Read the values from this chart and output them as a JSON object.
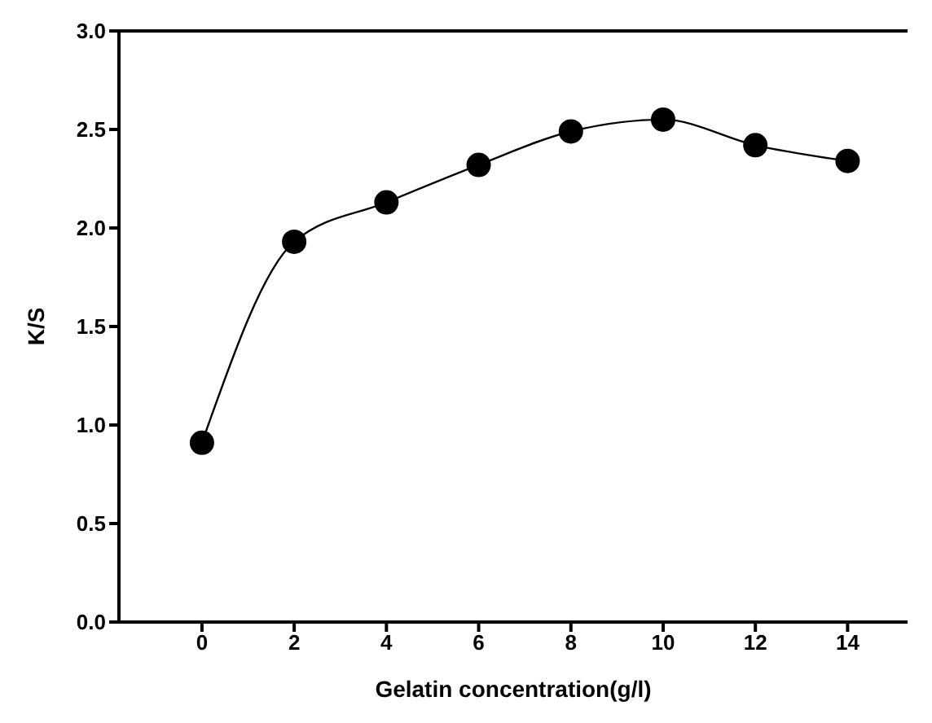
{
  "chart_data": {
    "type": "line",
    "xlabel": "Gelatin concentration(g/l)",
    "ylabel": "K/S",
    "x": [
      0,
      2,
      4,
      6,
      8,
      10,
      12,
      14
    ],
    "series": [
      {
        "color": "#000000",
        "values": [
          0.91,
          1.93,
          2.13,
          2.32,
          2.49,
          2.55,
          2.42,
          2.34
        ]
      }
    ],
    "xlim": [
      -1.8,
      15.3
    ],
    "xticks": [
      0,
      2,
      4,
      6,
      8,
      10,
      12,
      14
    ],
    "ylim": [
      0,
      3
    ],
    "yticks": [
      {
        "value": 0,
        "label": "0.0"
      },
      {
        "value": 0.5,
        "label": "0.5"
      },
      {
        "value": 1,
        "label": "1.0"
      },
      {
        "value": 1.5,
        "label": "1.5"
      },
      {
        "value": 2,
        "label": "2.0"
      },
      {
        "value": 2.5,
        "label": "2.5"
      },
      {
        "value": 3,
        "label": "3.0"
      }
    ],
    "marker": "circle",
    "line_style": "solid",
    "grid": false,
    "legend": false
  }
}
